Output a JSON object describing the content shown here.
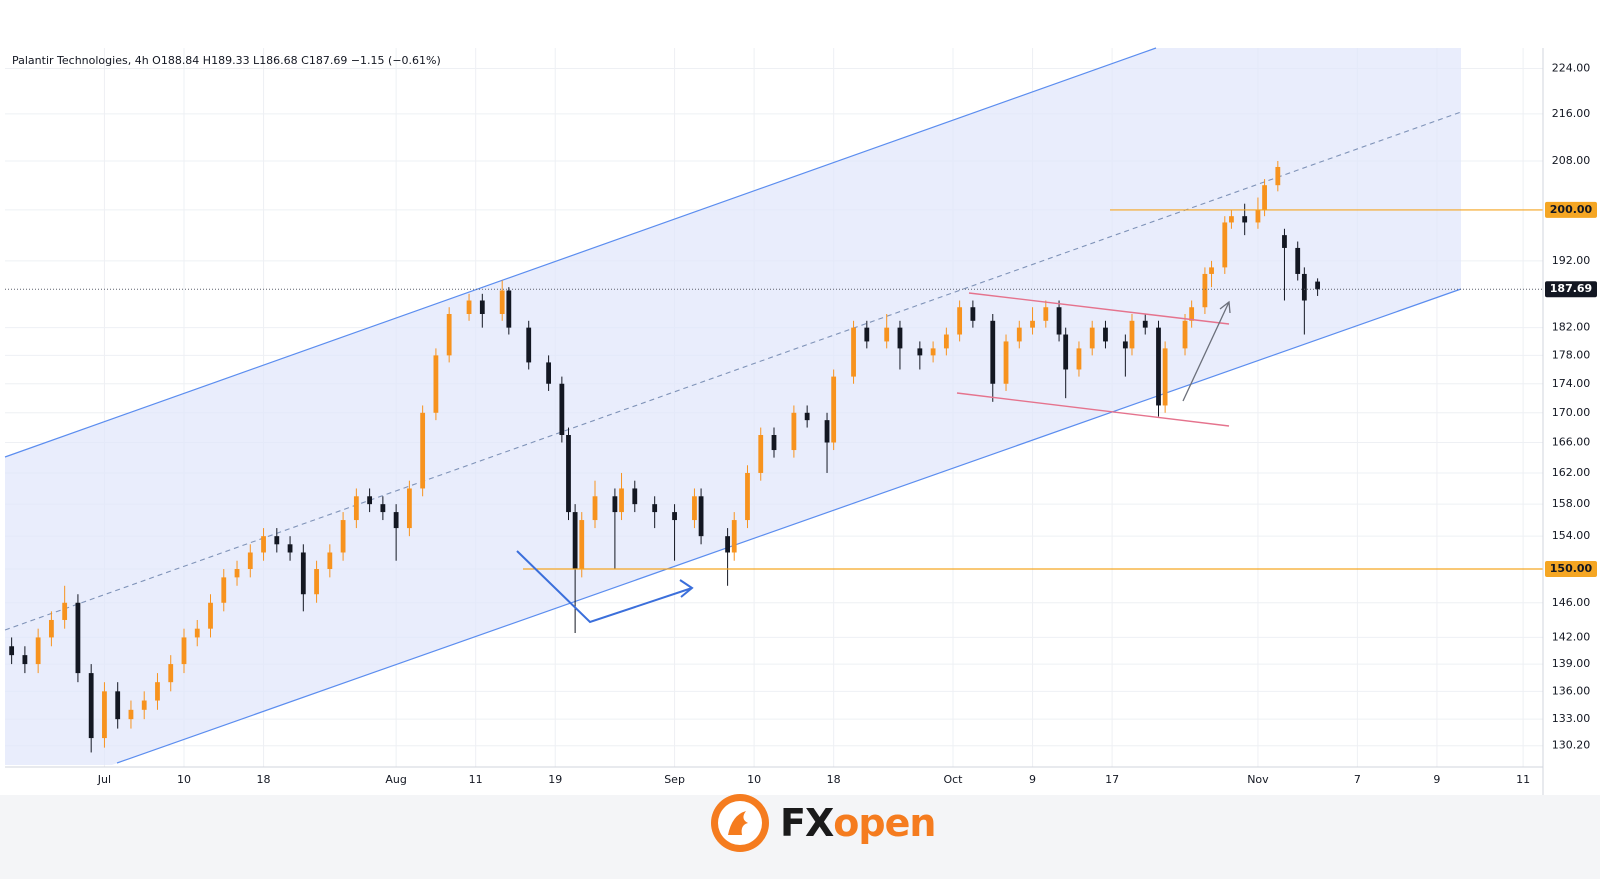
{
  "chart_data": {
    "type": "candlestick",
    "title": "Palantir Technologies, 4h  O188.84  H189.33  L186.68  C187.69  −1.15 (−0.61%)",
    "x": [
      -14,
      -12,
      -10,
      -8,
      -6,
      -4,
      -2,
      0,
      2,
      4,
      6,
      8,
      10,
      12,
      14,
      16,
      18,
      20,
      22,
      24,
      26,
      28,
      30,
      32,
      34,
      36,
      38,
      40,
      42,
      44,
      46,
      48,
      50,
      52,
      55,
      57,
      60,
      61,
      64,
      67,
      69,
      70,
      71,
      72,
      74,
      77,
      78,
      80,
      83,
      86,
      89,
      90,
      94,
      95,
      97,
      99,
      101,
      104,
      106,
      109,
      110,
      113,
      115,
      118,
      120,
      123,
      125,
      127,
      129,
      131,
      134,
      136,
      138,
      140,
      142,
      144,
      145,
      147,
      149,
      151,
      154,
      155,
      157,
      159,
      160,
      163,
      164,
      166,
      167,
      169,
      170,
      172,
      174,
      175,
      177,
      178,
      180,
      181,
      183
    ],
    "open": [
      141,
      140,
      139,
      142,
      144,
      146,
      138,
      131,
      136,
      133,
      134,
      135,
      137,
      139,
      142,
      143,
      146,
      149,
      150,
      152,
      154,
      153,
      152,
      147,
      150,
      152,
      156,
      159,
      158,
      157,
      155,
      160,
      170,
      178,
      184,
      186,
      184,
      187.5,
      182,
      177,
      174,
      167,
      157,
      150,
      156,
      159,
      157,
      160,
      158,
      157,
      156,
      159,
      154,
      152,
      156,
      162,
      167,
      165,
      170,
      169,
      166,
      175,
      182,
      180,
      182,
      179,
      178,
      179,
      181,
      185,
      183,
      174,
      180,
      182,
      183,
      185,
      181,
      176,
      179,
      182,
      180,
      179,
      183,
      182,
      171,
      179,
      183,
      185,
      190,
      191,
      198,
      199,
      198,
      200,
      204,
      196,
      194,
      190,
      188.84
    ],
    "high": [
      142,
      141,
      143,
      145,
      148,
      147,
      139,
      137,
      137,
      135,
      136,
      138,
      140,
      143,
      144,
      147,
      150,
      151,
      153,
      155,
      155,
      154,
      153,
      151,
      153,
      157,
      160,
      160,
      159,
      158,
      161,
      171,
      179,
      185,
      187,
      187,
      189,
      188,
      183,
      178,
      175,
      168,
      158,
      157,
      161,
      160,
      162,
      161,
      159,
      158,
      160,
      160,
      155,
      157,
      163,
      168,
      168,
      171,
      171,
      170,
      176,
      183,
      183,
      184,
      183,
      180,
      180,
      182,
      186,
      186,
      184,
      181,
      183,
      185,
      186,
      186,
      182,
      180,
      183,
      183,
      181,
      184,
      184,
      183,
      180,
      184,
      186,
      191,
      192,
      199,
      200,
      201,
      202,
      205,
      208,
      197,
      195,
      191,
      189.33
    ],
    "low": [
      139,
      138,
      138,
      141,
      143,
      137,
      129.5,
      130,
      132,
      132,
      133,
      134,
      136,
      138,
      141,
      142,
      145,
      148,
      149,
      151,
      152,
      151,
      145,
      146,
      149,
      151,
      155,
      157,
      156,
      151,
      154,
      159,
      169,
      177,
      183,
      182,
      183,
      181,
      176,
      173,
      166,
      156,
      142.5,
      149,
      155,
      150,
      156,
      157,
      155,
      151,
      155,
      153,
      148,
      151,
      155,
      161,
      164,
      164,
      168,
      162,
      165,
      174,
      179,
      179,
      176,
      176,
      177,
      178,
      180,
      182,
      171.5,
      173,
      179,
      181,
      182,
      180,
      172,
      175,
      178,
      179,
      175,
      178,
      181,
      169.5,
      170,
      178,
      182,
      184,
      188,
      190,
      197,
      196,
      197,
      199,
      203,
      186,
      189,
      181,
      186.68
    ],
    "close": [
      140,
      139,
      142,
      144,
      146,
      138,
      131,
      136,
      133,
      134,
      135,
      137,
      139,
      142,
      143,
      146,
      149,
      150,
      152,
      154,
      153,
      152,
      147,
      150,
      152,
      156,
      159,
      158,
      157,
      155,
      160,
      170,
      178,
      184,
      186,
      184,
      187.5,
      182,
      177,
      174,
      167,
      157,
      150,
      156,
      159,
      157,
      160,
      158,
      157,
      156,
      159,
      154,
      152,
      156,
      162,
      167,
      165,
      170,
      169,
      166,
      175,
      182,
      180,
      182,
      179,
      178,
      179,
      181,
      185,
      183,
      174,
      180,
      182,
      183,
      185,
      181,
      176,
      179,
      182,
      180,
      179,
      183,
      182,
      171,
      179,
      183,
      185,
      190,
      191,
      198,
      199,
      198,
      200,
      204,
      207,
      194,
      190,
      186,
      187.69
    ],
    "up_color": "#f7931e",
    "down_color": "#131722",
    "log_scale": true,
    "grid": true,
    "ylim": [
      128,
      227.7
    ],
    "yticks": [
      {
        "value": 130.2,
        "label": "130.20"
      },
      {
        "value": 133,
        "label": "133.00"
      },
      {
        "value": 136,
        "label": "136.00"
      },
      {
        "value": 139,
        "label": "139.00"
      },
      {
        "value": 142,
        "label": "142.00"
      },
      {
        "value": 146,
        "label": "146.00"
      },
      {
        "value": 150,
        "label": "150.00"
      },
      {
        "value": 154,
        "label": "154.00"
      },
      {
        "value": 158,
        "label": "158.00"
      },
      {
        "value": 162,
        "label": "162.00"
      },
      {
        "value": 166,
        "label": "166.00"
      },
      {
        "value": 170,
        "label": "170.00"
      },
      {
        "value": 174,
        "label": "174.00"
      },
      {
        "value": 178,
        "label": "178.00"
      },
      {
        "value": 182,
        "label": "182.00"
      },
      {
        "value": 192,
        "label": "192.00"
      },
      {
        "value": 200,
        "label": "200.00"
      },
      {
        "value": 208,
        "label": "208.00"
      },
      {
        "value": 216,
        "label": "216.00"
      },
      {
        "value": 224,
        "label": "224.00"
      }
    ],
    "xlim": [
      -15,
      217
    ],
    "xticks": [
      {
        "value": 0,
        "label": "Jul"
      },
      {
        "value": 12,
        "label": "10"
      },
      {
        "value": 24,
        "label": "18"
      },
      {
        "value": 44,
        "label": "Aug"
      },
      {
        "value": 56,
        "label": "11"
      },
      {
        "value": 68,
        "label": "19"
      },
      {
        "value": 86,
        "label": "Sep"
      },
      {
        "value": 98,
        "label": "10"
      },
      {
        "value": 110,
        "label": "18"
      },
      {
        "value": 128,
        "label": "Oct"
      },
      {
        "value": 140,
        "label": "9"
      },
      {
        "value": 152,
        "label": "17"
      },
      {
        "value": 174,
        "label": "Nov"
      },
      {
        "value": 189,
        "label": "7"
      },
      {
        "value": 201,
        "label": "9"
      },
      {
        "value": 214,
        "label": "11"
      }
    ],
    "levels": [
      {
        "value": 200,
        "label": "200.00",
        "color": "#f5a623"
      },
      {
        "value": 150,
        "label": "150.00",
        "color": "#f5a623"
      }
    ],
    "last_price": {
      "value": 187.69,
      "label": "187.69",
      "color": "#131722"
    }
  },
  "brand": {
    "prefix": "FX",
    "suffix": "open"
  }
}
